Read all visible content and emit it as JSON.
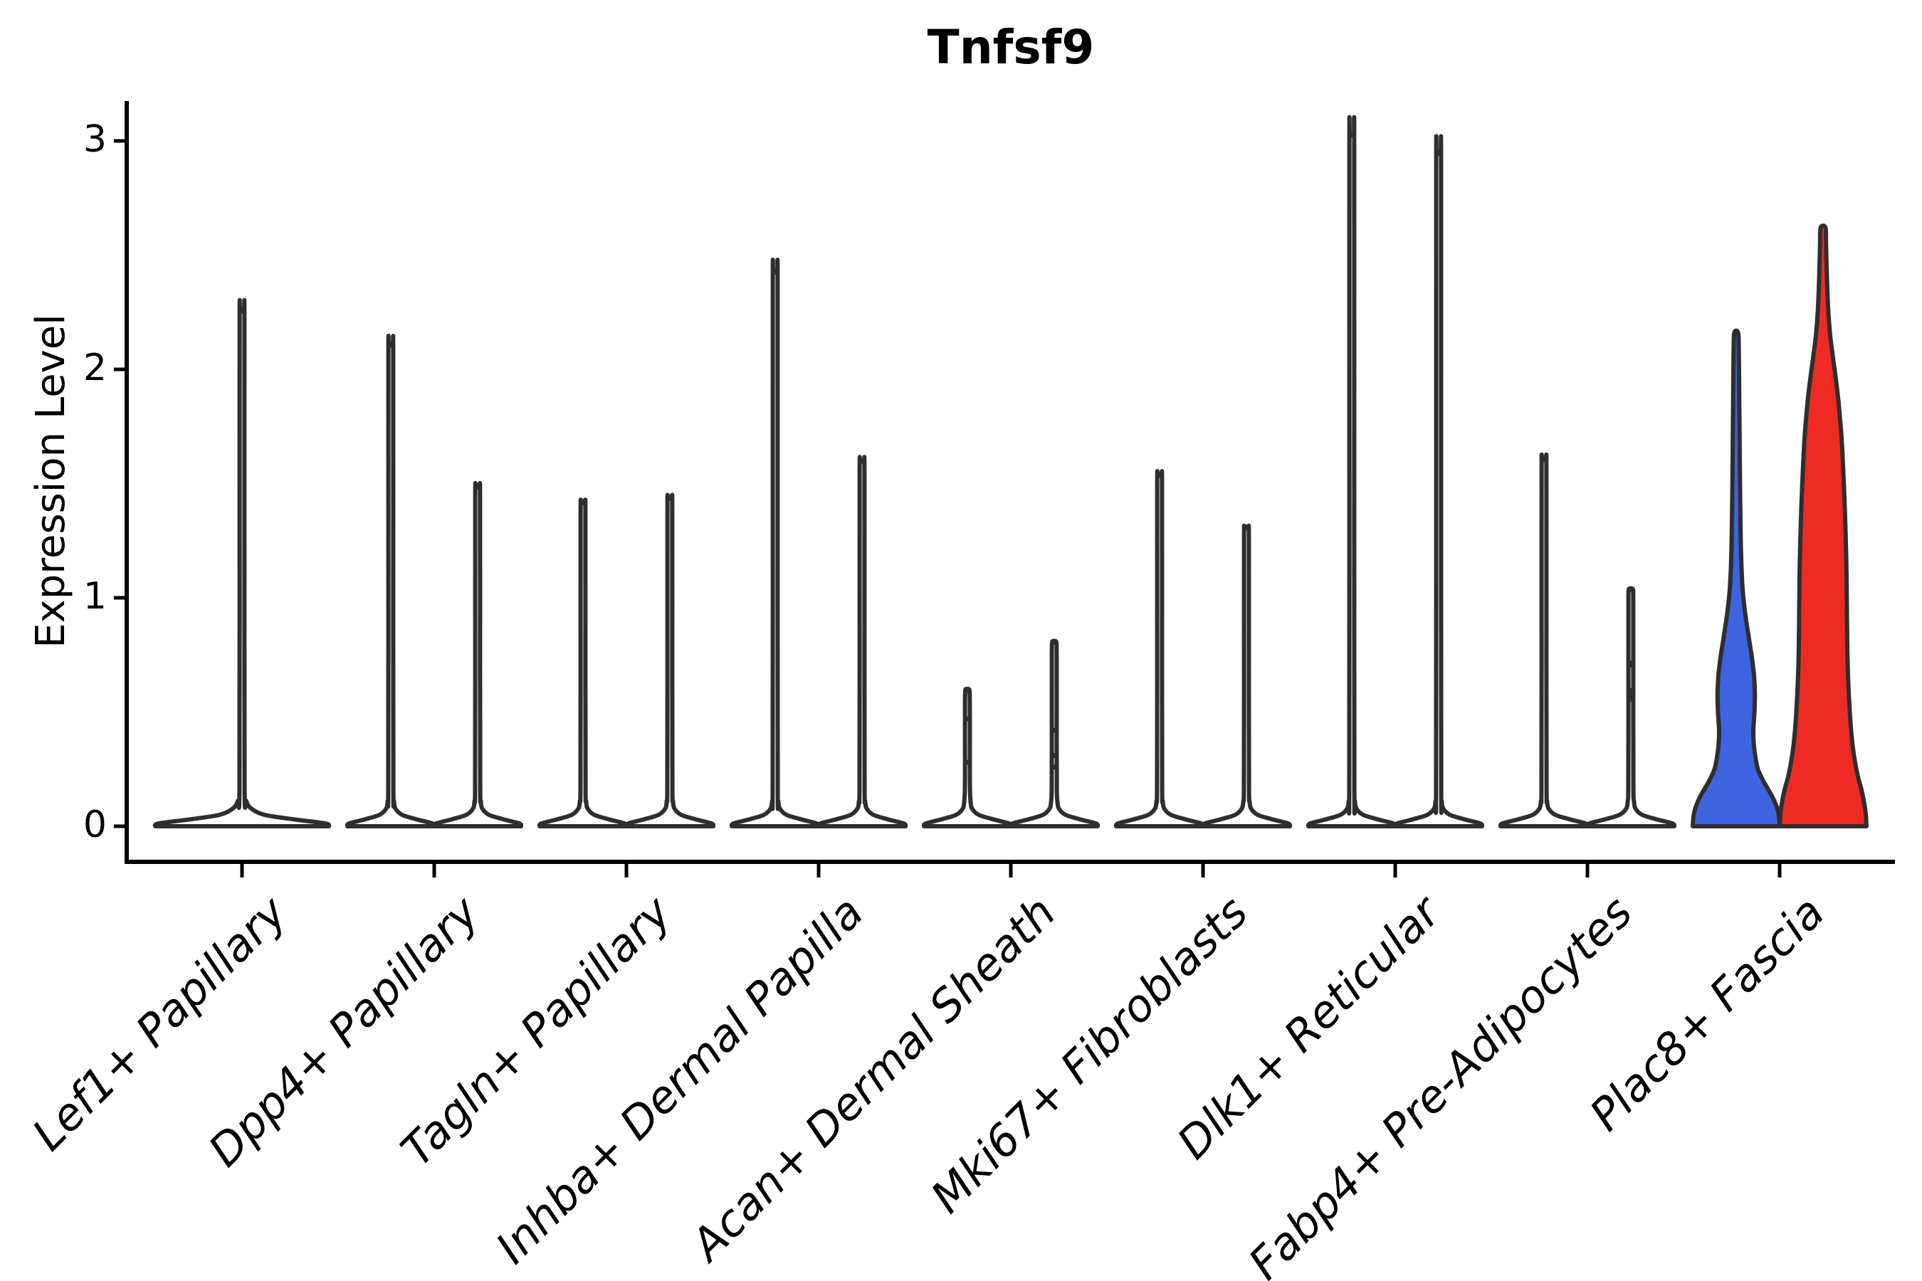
{
  "title": "Tnfsf9",
  "y_axis": {
    "label": "Expression Level",
    "tick_labels": [
      "0",
      "1",
      "2",
      "3"
    ]
  },
  "chart_data": {
    "type": "violin",
    "title": "Tnfsf9",
    "xlabel": "",
    "ylabel": "Expression Level",
    "ylim": [
      0,
      3.05
    ],
    "yticks": [
      0,
      1,
      2,
      3
    ],
    "grid": false,
    "legend": "none",
    "categories": [
      "Lef1+ Papillary",
      "Dpp4+ Papillary",
      "Tagln+ Papillary",
      "Inhba+ Dermal Papilla",
      "Acan+ Dermal Sheath",
      "Mki67+ Fibroblasts",
      "Dlk1+ Reticular",
      "Fabp4+ Pre-Adipocytes",
      "Plac8+ Fascia"
    ],
    "violins": [
      {
        "category": "Lef1+ Papillary",
        "position": "center",
        "fill": "#ffffff",
        "peak_expression": 2.26
      },
      {
        "category": "Dpp4+ Papillary",
        "position": "left",
        "fill": "#ffffff",
        "peak_expression": 2.11
      },
      {
        "category": "Dpp4+ Papillary",
        "position": "right",
        "fill": "#ffffff",
        "peak_expression": 1.49
      },
      {
        "category": "Tagln+ Papillary",
        "position": "left",
        "fill": "#ffffff",
        "peak_expression": 1.42
      },
      {
        "category": "Tagln+ Papillary",
        "position": "right",
        "fill": "#ffffff",
        "peak_expression": 1.44
      },
      {
        "category": "Inhba+ Dermal Papilla",
        "position": "left",
        "fill": "#ffffff",
        "peak_expression": 2.43
      },
      {
        "category": "Inhba+ Dermal Papilla",
        "position": "right",
        "fill": "#ffffff",
        "peak_expression": 1.6
      },
      {
        "category": "Acan+ Dermal Sheath",
        "position": "left",
        "fill": "#ffffff",
        "peak_expression": 0.6,
        "point_expressions": [
          0.47,
          0.28
        ]
      },
      {
        "category": "Acan+ Dermal Sheath",
        "position": "right",
        "fill": "#ffffff",
        "peak_expression": 0.81,
        "point_expressions": [
          0.42,
          0.31,
          0.26
        ]
      },
      {
        "category": "Mki67+ Fibroblasts",
        "position": "left",
        "fill": "#ffffff",
        "peak_expression": 1.54
      },
      {
        "category": "Mki67+ Fibroblasts",
        "position": "right",
        "fill": "#ffffff",
        "peak_expression": 1.31
      },
      {
        "category": "Dlk1+ Reticular",
        "position": "left",
        "fill": "#ffffff",
        "peak_expression": 3.03
      },
      {
        "category": "Dlk1+ Reticular",
        "position": "right",
        "fill": "#ffffff",
        "peak_expression": 2.95
      },
      {
        "category": "Fabp4+ Pre-Adipocytes",
        "position": "left",
        "fill": "#ffffff",
        "peak_expression": 1.61
      },
      {
        "category": "Fabp4+ Pre-Adipocytes",
        "position": "right",
        "fill": "#ffffff",
        "peak_expression": 1.04,
        "point_expressions": [
          0.71,
          0.59,
          0.56
        ]
      },
      {
        "category": "Plac8+ Fascia",
        "position": "left",
        "fill": "#3E63E0",
        "peak_expression": 2.16,
        "profile": [
          [
            0,
            1
          ],
          [
            0.04,
            0.985
          ],
          [
            0.08,
            0.94
          ],
          [
            0.12,
            0.855
          ],
          [
            0.16,
            0.74
          ],
          [
            0.2,
            0.62
          ],
          [
            0.25,
            0.5
          ],
          [
            0.3,
            0.445
          ],
          [
            0.36,
            0.405
          ],
          [
            0.42,
            0.395
          ],
          [
            0.5,
            0.42
          ],
          [
            0.58,
            0.43
          ],
          [
            0.66,
            0.41
          ],
          [
            0.74,
            0.36
          ],
          [
            0.82,
            0.295
          ],
          [
            0.9,
            0.23
          ],
          [
            1.0,
            0.165
          ],
          [
            1.1,
            0.13
          ],
          [
            1.25,
            0.105
          ],
          [
            1.45,
            0.09
          ],
          [
            1.7,
            0.078
          ],
          [
            1.95,
            0.068
          ],
          [
            2.08,
            0.06
          ],
          [
            2.16,
            0.045
          ]
        ]
      },
      {
        "category": "Plac8+ Fascia",
        "position": "right",
        "fill": "#EE2B23",
        "peak_expression": 2.62,
        "profile": [
          [
            0,
            1
          ],
          [
            0.05,
            0.985
          ],
          [
            0.1,
            0.95
          ],
          [
            0.16,
            0.885
          ],
          [
            0.22,
            0.8
          ],
          [
            0.3,
            0.72
          ],
          [
            0.4,
            0.655
          ],
          [
            0.52,
            0.61
          ],
          [
            0.66,
            0.575
          ],
          [
            0.8,
            0.557
          ],
          [
            0.95,
            0.549
          ],
          [
            1.1,
            0.541
          ],
          [
            1.25,
            0.525
          ],
          [
            1.4,
            0.5
          ],
          [
            1.55,
            0.467
          ],
          [
            1.7,
            0.426
          ],
          [
            1.85,
            0.36
          ],
          [
            1.95,
            0.3
          ],
          [
            2.05,
            0.23
          ],
          [
            2.15,
            0.164
          ],
          [
            2.25,
            0.123
          ],
          [
            2.35,
            0.098
          ],
          [
            2.45,
            0.082
          ],
          [
            2.55,
            0.069
          ],
          [
            2.62,
            0.055
          ]
        ]
      }
    ],
    "colors": {
      "outline": "#2E2E2E",
      "axis": "#000000",
      "text": "#000000",
      "fascia_left_fill": "#3E63E0",
      "fascia_right_fill": "#EE2B23"
    }
  }
}
